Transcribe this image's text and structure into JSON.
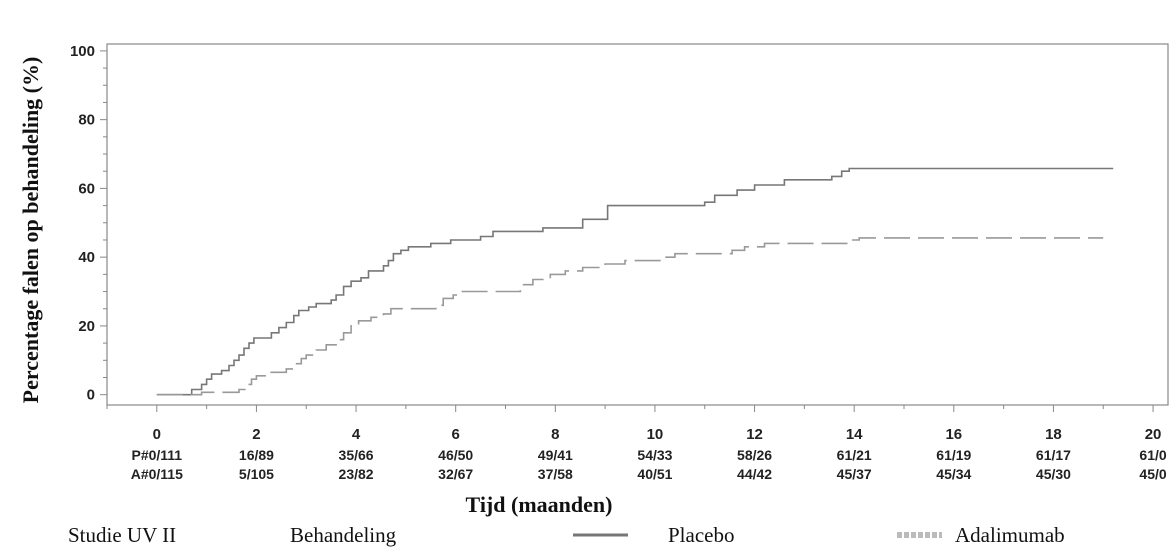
{
  "chart_data": {
    "type": "line",
    "xlabel": "Tijd (maanden)",
    "ylabel": "Percentage falen op behandeling (%)",
    "xlim": [
      -1,
      20.3
    ],
    "ylim": [
      -3,
      102
    ],
    "xticks": [
      0,
      2,
      4,
      6,
      8,
      10,
      12,
      14,
      16,
      18,
      20
    ],
    "yticks": [
      0,
      20,
      40,
      60,
      80,
      100
    ],
    "grid": false,
    "risk_table": {
      "rows": [
        {
          "label": "P#",
          "values": [
            "0/111",
            "16/89",
            "35/66",
            "46/50",
            "49/41",
            "54/33",
            "58/26",
            "61/21",
            "61/19",
            "61/17",
            "61/0"
          ]
        },
        {
          "label": "A#",
          "values": [
            "0/115",
            "5/105",
            "23/82",
            "32/67",
            "37/58",
            "40/51",
            "44/42",
            "45/37",
            "45/34",
            "45/30",
            "45/0"
          ]
        }
      ]
    },
    "legend": {
      "study": "Studie UV II",
      "treatment_label": "Behandeling",
      "placement": "bottom"
    },
    "series": [
      {
        "name": "Placebo",
        "style": "solid",
        "color": "#777777",
        "points": [
          [
            0,
            0
          ],
          [
            0.65,
            0
          ],
          [
            0.7,
            1.5
          ],
          [
            0.9,
            3
          ],
          [
            1.0,
            4.5
          ],
          [
            1.1,
            6
          ],
          [
            1.3,
            7
          ],
          [
            1.45,
            8.5
          ],
          [
            1.55,
            10
          ],
          [
            1.65,
            11.5
          ],
          [
            1.75,
            13.5
          ],
          [
            1.85,
            15
          ],
          [
            1.95,
            16.5
          ],
          [
            2.3,
            18
          ],
          [
            2.45,
            19.5
          ],
          [
            2.6,
            21
          ],
          [
            2.75,
            23
          ],
          [
            2.85,
            24.5
          ],
          [
            3.05,
            25.5
          ],
          [
            3.2,
            26.5
          ],
          [
            3.5,
            27.5
          ],
          [
            3.6,
            29
          ],
          [
            3.75,
            31.5
          ],
          [
            3.9,
            33
          ],
          [
            4.1,
            34
          ],
          [
            4.25,
            36
          ],
          [
            4.55,
            37.5
          ],
          [
            4.65,
            39
          ],
          [
            4.75,
            41
          ],
          [
            4.9,
            42
          ],
          [
            5.05,
            43
          ],
          [
            5.5,
            44
          ],
          [
            5.9,
            45
          ],
          [
            6.5,
            46
          ],
          [
            6.75,
            47.5
          ],
          [
            7.75,
            48.5
          ],
          [
            8.55,
            51
          ],
          [
            9.05,
            55
          ],
          [
            11.0,
            56
          ],
          [
            11.2,
            58
          ],
          [
            11.65,
            59.5
          ],
          [
            12.0,
            61
          ],
          [
            12.6,
            62.5
          ],
          [
            13.55,
            63.5
          ],
          [
            13.75,
            65
          ],
          [
            13.9,
            65.8
          ],
          [
            19.2,
            65.8
          ]
        ]
      },
      {
        "name": "Adalimumab",
        "style": "dashed",
        "color": "#999999",
        "points": [
          [
            0,
            0
          ],
          [
            0.6,
            0
          ],
          [
            0.9,
            0.7
          ],
          [
            1.65,
            1.5
          ],
          [
            1.8,
            3
          ],
          [
            1.9,
            4.5
          ],
          [
            2.0,
            5.5
          ],
          [
            2.2,
            6.5
          ],
          [
            2.6,
            7.5
          ],
          [
            2.75,
            9
          ],
          [
            2.9,
            10.5
          ],
          [
            3.0,
            11.5
          ],
          [
            3.2,
            13
          ],
          [
            3.4,
            14.5
          ],
          [
            3.65,
            16
          ],
          [
            3.75,
            18
          ],
          [
            3.9,
            20
          ],
          [
            4.05,
            21.5
          ],
          [
            4.3,
            22.5
          ],
          [
            4.55,
            23.5
          ],
          [
            4.7,
            25
          ],
          [
            5.6,
            26
          ],
          [
            5.75,
            28
          ],
          [
            5.95,
            29
          ],
          [
            6.1,
            30
          ],
          [
            7.3,
            32
          ],
          [
            7.55,
            33.5
          ],
          [
            7.9,
            35
          ],
          [
            8.2,
            36
          ],
          [
            8.55,
            37
          ],
          [
            9.0,
            38
          ],
          [
            9.4,
            39
          ],
          [
            10.2,
            40
          ],
          [
            10.4,
            41
          ],
          [
            11.55,
            42
          ],
          [
            11.8,
            43
          ],
          [
            12.2,
            44
          ],
          [
            13.9,
            45
          ],
          [
            14.1,
            45.6
          ],
          [
            19.0,
            45.6
          ]
        ]
      }
    ]
  }
}
